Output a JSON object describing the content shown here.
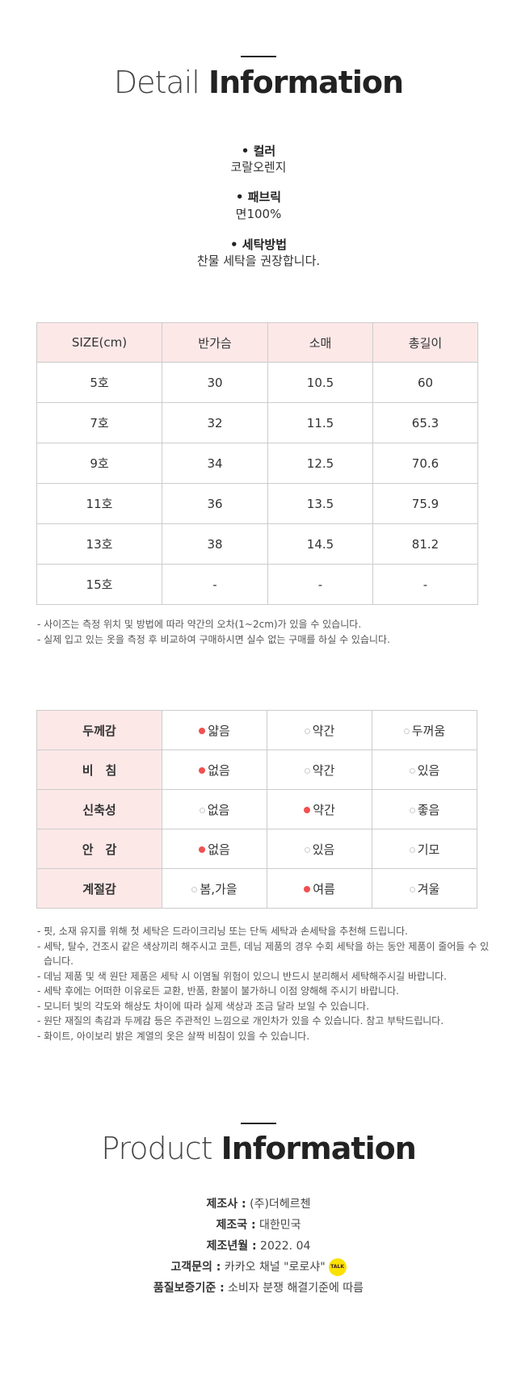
{
  "detail": {
    "title_light": "Detail",
    "title_bold": "Information",
    "specs": [
      {
        "label": "• 컬러",
        "value": "코랄오렌지"
      },
      {
        "label": "• 패브릭",
        "value": "면100%"
      },
      {
        "label": "• 세탁방법",
        "value": "찬물 세탁을 권장합니다."
      }
    ]
  },
  "size_table": {
    "headers": [
      "SIZE(cm)",
      "반가슴",
      "소매",
      "총길이"
    ],
    "rows": [
      [
        "5호",
        "30",
        "10.5",
        "60"
      ],
      [
        "7호",
        "32",
        "11.5",
        "65.3"
      ],
      [
        "9호",
        "34",
        "12.5",
        "70.6"
      ],
      [
        "11호",
        "36",
        "13.5",
        "75.9"
      ],
      [
        "13호",
        "38",
        "14.5",
        "81.2"
      ],
      [
        "15호",
        "-",
        "-",
        "-"
      ]
    ]
  },
  "size_notes": [
    "- 사이즈는 측정 위치 및 방법에 따라 약간의 오차(1~2cm)가 있을 수 있습니다.",
    "- 실제 입고 있는 옷을 측정 후 비교하여 구매하시면 실수 없는 구매를 하실 수 있습니다."
  ],
  "fit_table": {
    "accent": "#f05050",
    "rows": [
      {
        "label": "두께감",
        "options": [
          "얇음",
          "약간",
          "두꺼움"
        ],
        "selected": 0
      },
      {
        "label": "비　침",
        "options": [
          "없음",
          "약간",
          "있음"
        ],
        "selected": 0
      },
      {
        "label": "신축성",
        "options": [
          "없음",
          "약간",
          "좋음"
        ],
        "selected": 1
      },
      {
        "label": "안　감",
        "options": [
          "없음",
          "있음",
          "기모"
        ],
        "selected": 0
      },
      {
        "label": "계절감",
        "options": [
          "봄,가을",
          "여름",
          "겨울"
        ],
        "selected": 1
      }
    ]
  },
  "care_notes": [
    "- 핏, 소재 유지를 위해 첫 세탁은 드라이크리닝 또는 단독 세탁과 손세탁을 추천해 드립니다.",
    "- 세탁, 탈수, 건조시 같은 색상끼리 해주시고 코튼, 데님 제품의 경우 수회 세탁을 하는 동안 제품이 줄어들 수 있습니다.",
    "- 데님 제품 및 색 원단 제품은 세탁 시 이염될 위험이 있으니 반드시 분리해서 세탁해주시길 바랍니다.",
    "- 세탁 후에는 어떠한 이유로든 교환, 반품, 환불이 불가하니 이점 양해해 주시기 바랍니다.",
    "- 모니터 빛의 각도와 해상도 차이에 따라 실제 색상과 조금 달라 보일 수 있습니다.",
    "- 원단 재질의 촉감과 두께감 등은 주관적인 느낌으로 개인차가 있을 수 있습니다. 참고 부탁드립니다.",
    "- 화이트, 아이보리 밝은 계열의 옷은 살짝 비침이 있을 수 있습니다."
  ],
  "product": {
    "title_light": "Product",
    "title_bold": "Information",
    "rows": [
      {
        "k": "제조사 :",
        "v": " (주)더헤르첸"
      },
      {
        "k": "제조국 :",
        "v": " 대한민국"
      },
      {
        "k": "제조년월 :",
        "v": " 2022. 04"
      },
      {
        "k": "고객문의 :",
        "v": " 카카오 채널 \"로로샤\""
      },
      {
        "k": "품질보증기준 :",
        "v": " 소비자 분쟁 해결기준에 따름"
      }
    ],
    "talk_icon": "kakao-talk-icon",
    "talk_text": "TALK"
  }
}
